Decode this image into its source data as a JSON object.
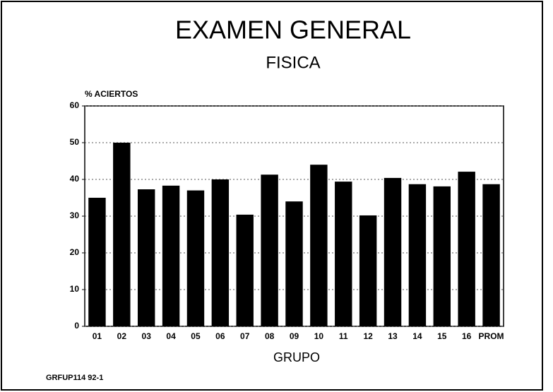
{
  "chart_data": {
    "type": "bar",
    "title": "EXAMEN GENERAL",
    "subtitle": "FISICA",
    "y_label": "% ACIERTOS",
    "x_label": "GRUPO",
    "footnote": "GRFUP114 92-1",
    "categories": [
      "01",
      "02",
      "03",
      "04",
      "05",
      "06",
      "07",
      "08",
      "09",
      "10",
      "11",
      "12",
      "13",
      "14",
      "15",
      "16",
      "PROM"
    ],
    "values": [
      35,
      50,
      37.3,
      38.3,
      37,
      40,
      30.4,
      41.3,
      34,
      44,
      39.4,
      30.2,
      40.4,
      38.7,
      38.1,
      42.1,
      38.7
    ],
    "color": "#000000",
    "ylim": [
      0,
      60
    ],
    "yticks": [
      0,
      10,
      20,
      30,
      40,
      50,
      60
    ],
    "grid": true
  }
}
